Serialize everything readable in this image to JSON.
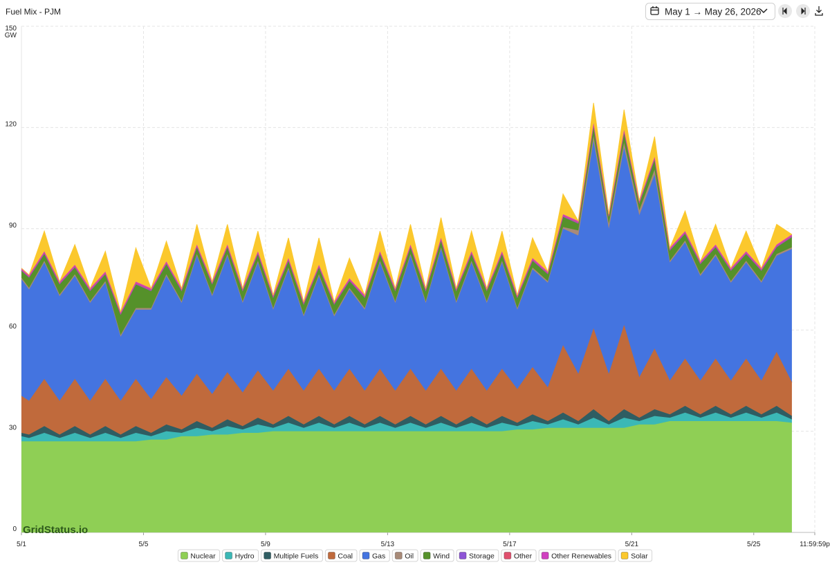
{
  "header": {
    "date_range": "May 1 → May 26, 2026"
  },
  "chart_data": {
    "type": "stacked_area",
    "title": "Fuel Mix - PJM",
    "watermark": "GridStatus.io",
    "y_unit": "GW",
    "grid": true,
    "legend": "bottom",
    "xlim": [
      0,
      624
    ],
    "xticks": [
      {
        "value": 0,
        "label": "5/1"
      },
      {
        "value": 96,
        "label": "5/5"
      },
      {
        "value": 192,
        "label": "5/9"
      },
      {
        "value": 288,
        "label": "5/13"
      },
      {
        "value": 384,
        "label": "5/17"
      },
      {
        "value": 480,
        "label": "5/21"
      },
      {
        "value": 576,
        "label": "5/25"
      },
      {
        "value": 624,
        "label": "11:59:59p"
      }
    ],
    "ylim": [
      0,
      150
    ],
    "yticks": [
      0,
      30,
      60,
      90,
      120,
      150
    ],
    "x": [
      0,
      6,
      18,
      30,
      42,
      54,
      66,
      78,
      90,
      102,
      114,
      126,
      138,
      150,
      162,
      174,
      186,
      198,
      210,
      222,
      234,
      246,
      258,
      270,
      282,
      294,
      306,
      318,
      330,
      342,
      354,
      366,
      378,
      390,
      402,
      414,
      426,
      438,
      450,
      462,
      474,
      486,
      498,
      510,
      522,
      534,
      546,
      558,
      570,
      582,
      594,
      606
    ],
    "series": [
      {
        "name": "Nuclear",
        "color": "#8fcf55",
        "values": [
          27,
          27,
          27,
          27,
          27,
          27,
          27,
          27,
          27,
          27.5,
          27.5,
          28.5,
          28.5,
          29,
          29,
          29.5,
          29.5,
          30,
          30,
          30,
          30,
          30,
          30,
          30,
          30,
          30,
          30,
          30,
          30,
          30,
          30,
          30,
          30,
          30.5,
          30.5,
          31,
          31,
          31,
          31,
          31,
          31,
          32,
          32,
          33,
          33,
          33,
          33,
          33,
          33,
          33,
          33,
          32.5
        ]
      },
      {
        "name": "Hydro",
        "color": "#3bb8b6",
        "values": [
          1.5,
          1,
          2.5,
          1,
          2.5,
          1,
          2.5,
          1,
          2.5,
          1,
          2.5,
          1,
          2.5,
          1,
          2.5,
          1,
          2.5,
          1,
          2.5,
          1,
          2.5,
          1,
          2.5,
          1,
          2.5,
          1,
          2.5,
          1,
          2.5,
          1,
          2.5,
          1,
          2.5,
          1,
          2.5,
          1,
          2.5,
          1,
          3,
          1,
          3,
          1,
          2.5,
          1,
          2.5,
          1,
          2.5,
          1,
          2.5,
          1,
          2.5,
          1
        ]
      },
      {
        "name": "Multiple Fuels",
        "color": "#2f5d62",
        "values": [
          1,
          1,
          2,
          1,
          2,
          1,
          2,
          1,
          2,
          1,
          2,
          1,
          2,
          1,
          2,
          1,
          2,
          1,
          2,
          1,
          2,
          1,
          2,
          1,
          2,
          1,
          2,
          1,
          2,
          1,
          2,
          1,
          2,
          1,
          2,
          1,
          2,
          1,
          2.5,
          1,
          2.5,
          1,
          2,
          1,
          2,
          1,
          2,
          1,
          2,
          1,
          2,
          1
        ]
      },
      {
        "name": "Coal",
        "color": "#c06a3c",
        "values": [
          11,
          10,
          14,
          10,
          14,
          10,
          14,
          10,
          14,
          10,
          14,
          10,
          14,
          10,
          14,
          10,
          14,
          10,
          14,
          10,
          14,
          10,
          14,
          10,
          14,
          10,
          14,
          10,
          14,
          10,
          14,
          10,
          14,
          10,
          14,
          10,
          20,
          14,
          24,
          14,
          25,
          12,
          18,
          10,
          14,
          10,
          14,
          10,
          14,
          10,
          16,
          10
        ]
      },
      {
        "name": "Gas",
        "color": "#4474e0",
        "values": [
          34.5,
          33,
          34.5,
          31,
          30.5,
          29,
          28.5,
          19,
          20.5,
          26.5,
          30,
          27.5,
          35,
          29,
          34.5,
          26.5,
          32,
          24,
          29.5,
          22,
          27.5,
          22,
          23.5,
          24,
          31.5,
          26,
          33.5,
          26,
          35.5,
          26,
          31.5,
          26,
          31.5,
          23.5,
          29,
          31,
          34.5,
          41,
          55.5,
          43,
          52.5,
          48,
          51.5,
          35,
          34.5,
          31,
          30.5,
          29,
          28.5,
          29,
          28.5,
          39.5
        ]
      },
      {
        "name": "Oil",
        "color": "#a88a78",
        "values": [
          0.5,
          0.5,
          0.5,
          0.5,
          0.5,
          0.5,
          0.5,
          0.5,
          0.5,
          0.5,
          0.5,
          0.5,
          0.5,
          0.5,
          0.5,
          0.5,
          0.5,
          0.5,
          0.5,
          0.5,
          0.5,
          0.5,
          0.5,
          0.5,
          0.5,
          0.5,
          0.5,
          0.5,
          0.5,
          0.5,
          0.5,
          0.5,
          0.5,
          0.5,
          0.5,
          0.5,
          0.5,
          1.5,
          1.5,
          1.5,
          1.5,
          1.5,
          1.5,
          0.5,
          0.5,
          0.5,
          0.5,
          0.5,
          0.5,
          0.5,
          0.5,
          0.5
        ]
      },
      {
        "name": "Wind",
        "color": "#55912a",
        "values": [
          2,
          3,
          2,
          3,
          2,
          3,
          2,
          6,
          7,
          5,
          3,
          3,
          2,
          3,
          2,
          3,
          2,
          3,
          2,
          3,
          2,
          3,
          2,
          3,
          2,
          3,
          2,
          3,
          2,
          3,
          2,
          3,
          2,
          3,
          2,
          2,
          3,
          2,
          3,
          2,
          3,
          2,
          3,
          3,
          2,
          3,
          2,
          3,
          2,
          3,
          2,
          3
        ]
      },
      {
        "name": "Storage",
        "color": "#8e55d6",
        "values": [
          0.2,
          0.2,
          0.2,
          0.2,
          0.2,
          0.2,
          0.2,
          0.2,
          0.2,
          0.2,
          0.2,
          0.2,
          0.2,
          0.2,
          0.2,
          0.2,
          0.2,
          0.2,
          0.2,
          0.2,
          0.2,
          0.2,
          0.2,
          0.2,
          0.2,
          0.2,
          0.2,
          0.2,
          0.2,
          0.2,
          0.2,
          0.2,
          0.2,
          0.2,
          0.2,
          0.2,
          0.2,
          0.2,
          0.2,
          0.2,
          0.2,
          0.2,
          0.2,
          0.2,
          0.2,
          0.2,
          0.2,
          0.2,
          0.2,
          0.2,
          0.2,
          0.2
        ]
      },
      {
        "name": "Other",
        "color": "#e0506e",
        "values": [
          0.2,
          0.2,
          0.2,
          0.2,
          0.2,
          0.2,
          0.2,
          0.2,
          0.2,
          0.2,
          0.2,
          0.2,
          0.2,
          0.2,
          0.2,
          0.2,
          0.2,
          0.2,
          0.2,
          0.2,
          0.2,
          0.2,
          0.2,
          0.2,
          0.2,
          0.2,
          0.2,
          0.2,
          0.2,
          0.2,
          0.2,
          0.2,
          0.2,
          0.2,
          0.2,
          0.2,
          0.2,
          0.2,
          0.2,
          0.2,
          0.2,
          0.2,
          0.2,
          0.2,
          0.2,
          0.2,
          0.2,
          0.2,
          0.2,
          0.2,
          0.2,
          0.2
        ]
      },
      {
        "name": "Other Renewables",
        "color": "#d040c0",
        "values": [
          0.4,
          0.4,
          0.4,
          0.4,
          0.4,
          0.4,
          0.4,
          0.4,
          0.4,
          0.4,
          0.4,
          0.4,
          0.4,
          0.4,
          0.4,
          0.4,
          0.4,
          0.4,
          0.4,
          0.4,
          0.4,
          0.4,
          0.4,
          0.4,
          0.4,
          0.4,
          0.4,
          0.4,
          0.4,
          0.4,
          0.4,
          0.4,
          0.4,
          0.4,
          0.4,
          0.4,
          0.4,
          0.4,
          0.4,
          0.4,
          0.4,
          0.4,
          0.4,
          0.4,
          0.4,
          0.4,
          0.4,
          0.4,
          0.4,
          0.4,
          0.4,
          0.4
        ]
      },
      {
        "name": "Solar",
        "color": "#fbc82d",
        "values": [
          0,
          0,
          6,
          0,
          6,
          0,
          6,
          0,
          10,
          0,
          6,
          0,
          6,
          0,
          6,
          0,
          6,
          0,
          6,
          0,
          8,
          0,
          6,
          0,
          6,
          0,
          6,
          0,
          6,
          0,
          6,
          0,
          6,
          0,
          6,
          0,
          6,
          0,
          6,
          0,
          6,
          0,
          6,
          0,
          6,
          0,
          6,
          0,
          6,
          0,
          6,
          0
        ]
      }
    ]
  }
}
